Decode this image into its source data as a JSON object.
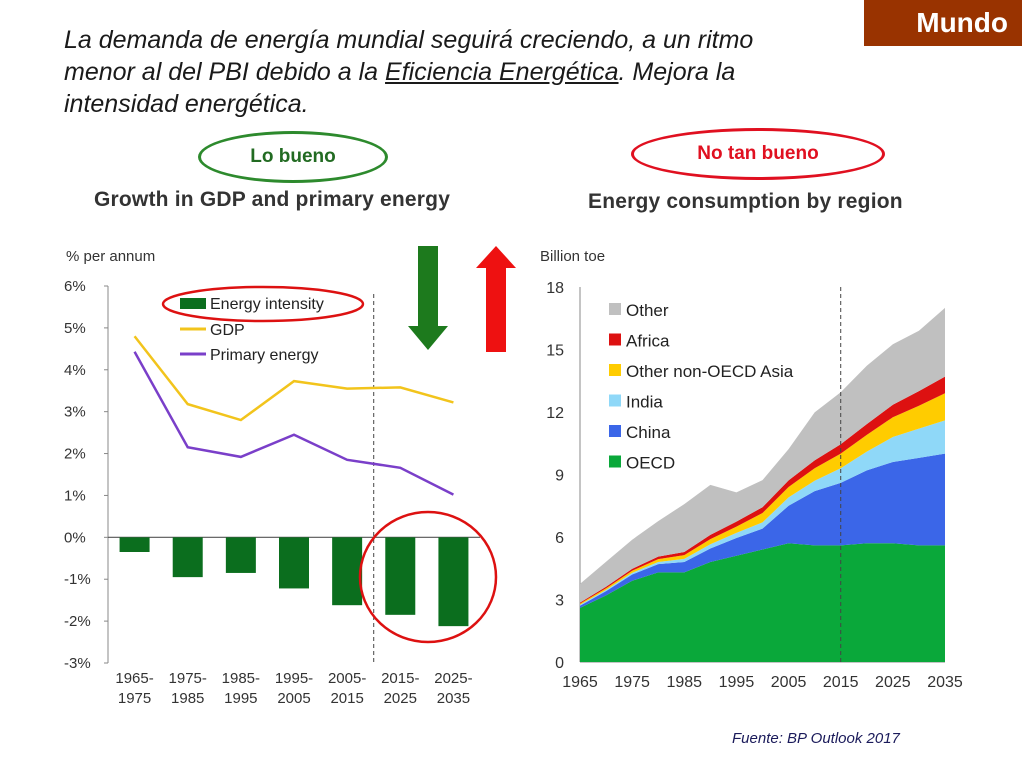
{
  "header": {
    "badge": "Mundo",
    "headline_part1": "La demanda de energía mundial seguirá creciendo, a un ritmo menor al del PBI debido a la ",
    "headline_link": "Eficiencia Energética",
    "headline_part2": ". Mejora la intensidad energética."
  },
  "labels": {
    "good": "Lo bueno",
    "bad": "No tan  bueno"
  },
  "source": "Fuente: BP Outlook 2017",
  "colors": {
    "energy_intensity": "#0b6e1e",
    "gdp": "#f2c41c",
    "primary_energy": "#7a3fc9",
    "other": "#c0c0c0",
    "africa": "#dd1111",
    "other_non_oecd_asia": "#ffcc00",
    "india": "#8fd8f8",
    "china": "#3b66e8",
    "oecd": "#0aa83a",
    "arrow_down": "#1d7a1d",
    "arrow_up": "#ee1111",
    "circle": "#dd1111"
  },
  "icons": {
    "down": "arrow-down-icon",
    "up": "arrow-up-icon"
  },
  "chart_data": [
    {
      "type": "bar",
      "title": "Growth in GDP and primary energy",
      "ylabel": "% per annum",
      "ylim": [
        -3,
        6
      ],
      "yticks": [
        "6%",
        "5%",
        "4%",
        "3%",
        "2%",
        "1%",
        "0%",
        "-1%",
        "-2%",
        "-3%"
      ],
      "categories": [
        [
          "1965-",
          "1975"
        ],
        [
          "1975-",
          "1985"
        ],
        [
          "1985-",
          "1995"
        ],
        [
          "1995-",
          "2005"
        ],
        [
          "2005-",
          "2015"
        ],
        [
          "2015-",
          "2025"
        ],
        [
          "2025-",
          "2035"
        ]
      ],
      "legend_position": "top-left",
      "grid": false,
      "series": [
        {
          "name": "Energy intensity",
          "kind": "bar",
          "values": [
            -0.35,
            -0.95,
            -0.85,
            -1.22,
            -1.62,
            -1.85,
            -2.12
          ]
        },
        {
          "name": "GDP",
          "kind": "line",
          "values": [
            4.8,
            3.18,
            2.8,
            3.73,
            3.55,
            3.58,
            3.22
          ]
        },
        {
          "name": "Primary energy",
          "kind": "line",
          "values": [
            4.43,
            2.15,
            1.92,
            2.45,
            1.85,
            1.66,
            1.02
          ]
        }
      ]
    },
    {
      "type": "area",
      "title": "Energy consumption by region",
      "ylabel": "Billion toe",
      "ylim": [
        0,
        18
      ],
      "yticks": [
        "18",
        "15",
        "12",
        "9",
        "6",
        "3",
        "0"
      ],
      "xticks": [
        "1965",
        "1975",
        "1985",
        "1995",
        "2005",
        "2015",
        "2025",
        "2035"
      ],
      "legend_position": "top-left",
      "grid": false,
      "stacked": true,
      "x": [
        1965,
        1970,
        1975,
        1980,
        1985,
        1990,
        1995,
        2000,
        2005,
        2010,
        2015,
        2020,
        2025,
        2030,
        2035
      ],
      "series": [
        {
          "name": "OECD",
          "values": [
            2.6,
            3.2,
            3.9,
            4.3,
            4.3,
            4.8,
            5.1,
            5.4,
            5.7,
            5.6,
            5.6,
            5.7,
            5.7,
            5.6,
            5.6
          ]
        },
        {
          "name": "China",
          "values": [
            0.1,
            0.2,
            0.3,
            0.4,
            0.5,
            0.65,
            0.85,
            1.0,
            1.8,
            2.6,
            3.0,
            3.5,
            3.9,
            4.2,
            4.4
          ]
        },
        {
          "name": "India",
          "values": [
            0.05,
            0.06,
            0.08,
            0.1,
            0.15,
            0.2,
            0.25,
            0.3,
            0.4,
            0.5,
            0.7,
            0.9,
            1.2,
            1.4,
            1.6
          ]
        },
        {
          "name": "Other non-OECD Asia",
          "values": [
            0.05,
            0.08,
            0.1,
            0.14,
            0.18,
            0.25,
            0.3,
            0.45,
            0.5,
            0.6,
            0.7,
            0.8,
            0.95,
            1.1,
            1.3
          ]
        },
        {
          "name": "Africa",
          "values": [
            0.05,
            0.07,
            0.09,
            0.12,
            0.15,
            0.2,
            0.24,
            0.28,
            0.32,
            0.38,
            0.45,
            0.52,
            0.6,
            0.7,
            0.8
          ]
        },
        {
          "name": "Other",
          "values": [
            0.9,
            1.2,
            1.4,
            1.7,
            2.3,
            2.4,
            1.4,
            1.3,
            1.5,
            2.3,
            2.5,
            2.8,
            2.9,
            2.9,
            3.3
          ]
        }
      ]
    }
  ]
}
